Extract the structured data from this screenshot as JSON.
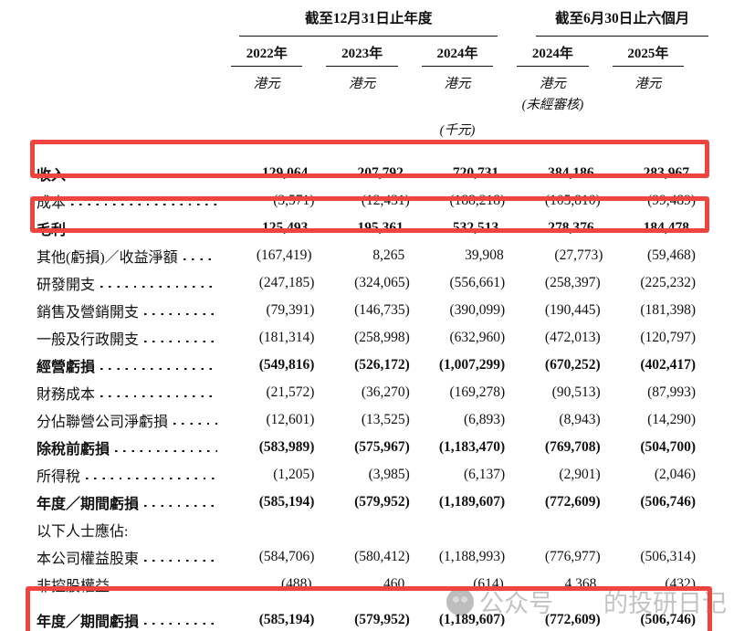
{
  "page": {
    "background": "#ffffff",
    "highlight_color": "#ee453e"
  },
  "header": {
    "group1": {
      "label": "截至12月31日止年度"
    },
    "group2": {
      "label": "截至6月30日止六個月"
    },
    "columns": [
      {
        "year": "2022年",
        "currency": "港元"
      },
      {
        "year": "2023年",
        "currency": "港元"
      },
      {
        "year": "2024年",
        "currency": "港元"
      },
      {
        "year": "2024年",
        "currency": "港元",
        "note": "(未經審核)"
      },
      {
        "year": "2025年",
        "currency": "港元"
      }
    ],
    "unit_note": "(千元)"
  },
  "table": {
    "rows": [
      {
        "label": "收入",
        "bold": true,
        "highlighted": true,
        "values": [
          "129,064",
          "207,792",
          "720,731",
          "384,186",
          "283,967"
        ]
      },
      {
        "label": "成本",
        "bold": false,
        "values": [
          "(3,571)",
          "(12,431)",
          "(188,218)",
          "(105,810)",
          "(99,489)"
        ]
      },
      {
        "label": "毛利",
        "bold": true,
        "highlighted": true,
        "values": [
          "125,493",
          "195,361",
          "532,513",
          "278,376",
          "184,478"
        ]
      },
      {
        "label": "其他(虧損)／收益淨額",
        "bold": false,
        "values": [
          "(167,419)",
          "8,265",
          "39,908",
          "(27,773)",
          "(59,468)"
        ]
      },
      {
        "label": "研發開支",
        "bold": false,
        "values": [
          "(247,185)",
          "(324,065)",
          "(556,661)",
          "(258,397)",
          "(225,232)"
        ]
      },
      {
        "label": "銷售及營銷開支",
        "bold": false,
        "values": [
          "(79,391)",
          "(146,735)",
          "(390,099)",
          "(190,445)",
          "(181,398)"
        ]
      },
      {
        "label": "一般及行政開支",
        "bold": false,
        "values": [
          "(181,314)",
          "(258,998)",
          "(632,960)",
          "(472,013)",
          "(120,797)"
        ]
      },
      {
        "label": "經營虧損",
        "bold": true,
        "values": [
          "(549,816)",
          "(526,172)",
          "(1,007,299)",
          "(670,252)",
          "(402,417)"
        ]
      },
      {
        "label": "財務成本",
        "bold": false,
        "values": [
          "(21,572)",
          "(36,270)",
          "(169,278)",
          "(90,513)",
          "(87,993)"
        ]
      },
      {
        "label": "分佔聯營公司淨虧損",
        "bold": false,
        "values": [
          "(12,601)",
          "(13,525)",
          "(6,893)",
          "(8,943)",
          "(14,290)"
        ]
      },
      {
        "label": "除稅前虧損",
        "bold": true,
        "values": [
          "(583,989)",
          "(575,967)",
          "(1,183,470)",
          "(769,708)",
          "(504,700)"
        ]
      },
      {
        "label": "所得稅",
        "bold": false,
        "values": [
          "(1,205)",
          "(3,985)",
          "(6,137)",
          "(2,901)",
          "(2,046)"
        ]
      },
      {
        "label": "年度／期間虧損",
        "bold": true,
        "values": [
          "(585,194)",
          "(579,952)",
          "(1,189,607)",
          "(772,609)",
          "(506,746)"
        ]
      },
      {
        "label": "以下人士應佔:",
        "bold": false,
        "section_header": true,
        "values": [
          "",
          "",
          "",
          "",
          ""
        ]
      },
      {
        "label": "本公司權益股東",
        "bold": false,
        "values": [
          "(584,706)",
          "(580,412)",
          "(1,188,993)",
          "(776,977)",
          "(506,314)"
        ]
      },
      {
        "label": "非控股權益",
        "bold": false,
        "values": [
          "(488)",
          "460",
          "(614)",
          "4,368",
          "(432)"
        ]
      },
      {
        "label": "年度／期間虧損",
        "bold": true,
        "highlighted": true,
        "values": [
          "(585,194)",
          "(579,952)",
          "(1,189,607)",
          "(772,609)",
          "(506,746)"
        ]
      }
    ]
  },
  "watermark": {
    "prefix": "公众号",
    "suffix": "的投研日记",
    "icon": "wechat-icon"
  }
}
